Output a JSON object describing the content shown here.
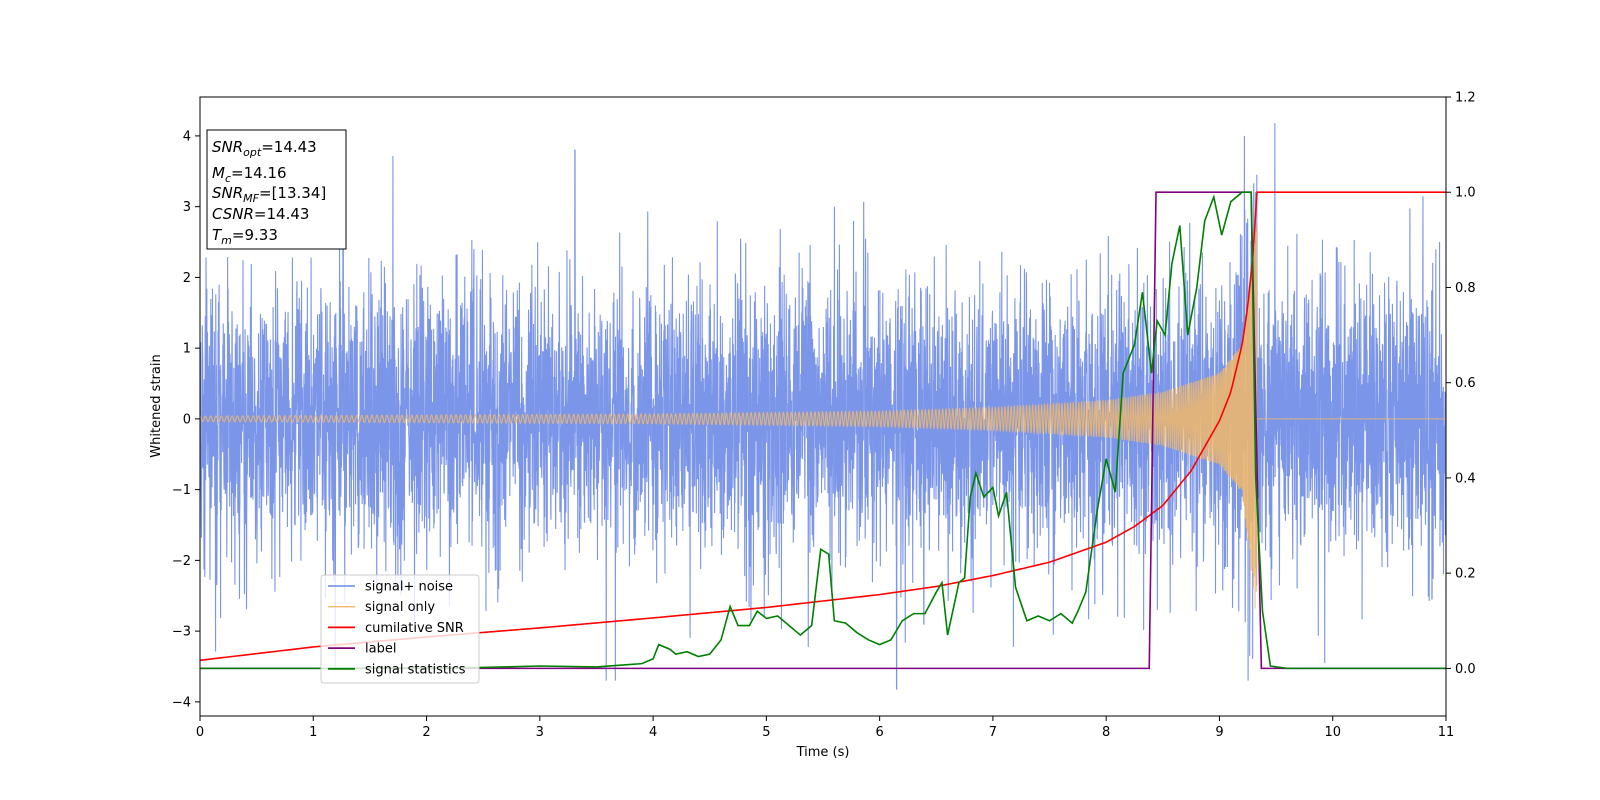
{
  "chart_data": {
    "type": "line",
    "xlabel": "Time (s)",
    "ylabel": "Whitened strain",
    "xlim": [
      0,
      11
    ],
    "ylim_left": [
      -4.2,
      4.55
    ],
    "ylim_right": [
      -0.1,
      1.2
    ],
    "x_ticks": [
      0,
      1,
      2,
      3,
      4,
      5,
      6,
      7,
      8,
      9,
      10,
      11
    ],
    "y_left_ticks": [
      -4,
      -3,
      -2,
      -1,
      0,
      1,
      2,
      3,
      4
    ],
    "y_left_tick_labels": [
      "−4",
      "−3",
      "−2",
      "−1",
      "0",
      "1",
      "2",
      "3",
      "4"
    ],
    "y_right_ticks": [
      0.0,
      0.2,
      0.4,
      0.6,
      0.8,
      1.0,
      1.2
    ],
    "y_right_tick_labels": [
      "0.0",
      "0.2",
      "0.4",
      "0.6",
      "0.8",
      "1.0",
      "1.2"
    ],
    "legend_placement": "lower-left",
    "grid": false,
    "series": [
      {
        "name": "signal+ noise",
        "axis": "left",
        "color": "#6d8ae6",
        "style": "dense noise band",
        "typical_range": [
          -2.0,
          2.3
        ],
        "notable_peaks": [
          [
            3.31,
            3.8
          ],
          [
            9.22,
            4.0
          ],
          [
            9.49,
            4.18
          ],
          [
            6.15,
            -3.82
          ],
          [
            6.39,
            -2.9
          ],
          [
            9.93,
            -3.45
          ]
        ]
      },
      {
        "name": "signal only",
        "axis": "left",
        "color": "#f2b86a",
        "style": "chirp",
        "amplitude_envelope": [
          [
            0,
            0.04
          ],
          [
            4,
            0.07
          ],
          [
            6,
            0.11
          ],
          [
            7,
            0.16
          ],
          [
            8,
            0.26
          ],
          [
            8.5,
            0.38
          ],
          [
            9.0,
            0.65
          ],
          [
            9.2,
            1.05
          ],
          [
            9.3,
            2.4
          ],
          [
            9.33,
            3.0
          ],
          [
            9.34,
            0.0
          ],
          [
            11,
            0.0
          ]
        ]
      },
      {
        "name": "cumilative SNR",
        "axis": "right",
        "color": "#ff0000",
        "points": [
          [
            0,
            0.017
          ],
          [
            1,
            0.045
          ],
          [
            2,
            0.066
          ],
          [
            3,
            0.085
          ],
          [
            4,
            0.106
          ],
          [
            5,
            0.128
          ],
          [
            6,
            0.155
          ],
          [
            6.5,
            0.172
          ],
          [
            7,
            0.195
          ],
          [
            7.5,
            0.223
          ],
          [
            8,
            0.265
          ],
          [
            8.25,
            0.298
          ],
          [
            8.5,
            0.342
          ],
          [
            8.75,
            0.415
          ],
          [
            9.0,
            0.52
          ],
          [
            9.1,
            0.58
          ],
          [
            9.2,
            0.68
          ],
          [
            9.25,
            0.76
          ],
          [
            9.3,
            0.88
          ],
          [
            9.33,
            1.0
          ],
          [
            11,
            1.0
          ]
        ]
      },
      {
        "name": "label",
        "axis": "right",
        "color": "#800080",
        "points": [
          [
            0,
            0
          ],
          [
            8.38,
            0
          ],
          [
            8.44,
            1.0
          ],
          [
            9.28,
            1.0
          ],
          [
            9.37,
            0
          ],
          [
            11,
            0
          ]
        ]
      },
      {
        "name": "signal statistics",
        "axis": "right",
        "color": "#008000",
        "points": [
          [
            0,
            0
          ],
          [
            1,
            0
          ],
          [
            2,
            0.001
          ],
          [
            2.5,
            0.002
          ],
          [
            3,
            0.005
          ],
          [
            3.5,
            0.003
          ],
          [
            3.9,
            0.01
          ],
          [
            4.0,
            0.02
          ],
          [
            4.05,
            0.05
          ],
          [
            4.15,
            0.04
          ],
          [
            4.2,
            0.03
          ],
          [
            4.3,
            0.035
          ],
          [
            4.4,
            0.025
          ],
          [
            4.5,
            0.03
          ],
          [
            4.6,
            0.06
          ],
          [
            4.68,
            0.13
          ],
          [
            4.75,
            0.09
          ],
          [
            4.85,
            0.09
          ],
          [
            4.92,
            0.12
          ],
          [
            5.0,
            0.105
          ],
          [
            5.1,
            0.11
          ],
          [
            5.2,
            0.09
          ],
          [
            5.3,
            0.07
          ],
          [
            5.4,
            0.09
          ],
          [
            5.48,
            0.25
          ],
          [
            5.55,
            0.24
          ],
          [
            5.6,
            0.1
          ],
          [
            5.7,
            0.095
          ],
          [
            5.8,
            0.075
          ],
          [
            5.9,
            0.06
          ],
          [
            6.0,
            0.05
          ],
          [
            6.1,
            0.06
          ],
          [
            6.2,
            0.1
          ],
          [
            6.3,
            0.115
          ],
          [
            6.4,
            0.115
          ],
          [
            6.5,
            0.16
          ],
          [
            6.55,
            0.18
          ],
          [
            6.6,
            0.07
          ],
          [
            6.7,
            0.18
          ],
          [
            6.75,
            0.19
          ],
          [
            6.8,
            0.36
          ],
          [
            6.85,
            0.41
          ],
          [
            6.92,
            0.36
          ],
          [
            7.0,
            0.38
          ],
          [
            7.05,
            0.32
          ],
          [
            7.12,
            0.37
          ],
          [
            7.2,
            0.17
          ],
          [
            7.3,
            0.1
          ],
          [
            7.4,
            0.11
          ],
          [
            7.5,
            0.1
          ],
          [
            7.6,
            0.115
          ],
          [
            7.7,
            0.095
          ],
          [
            7.75,
            0.12
          ],
          [
            7.82,
            0.16
          ],
          [
            7.92,
            0.33
          ],
          [
            8.0,
            0.44
          ],
          [
            8.08,
            0.37
          ],
          [
            8.15,
            0.62
          ],
          [
            8.25,
            0.68
          ],
          [
            8.32,
            0.79
          ],
          [
            8.4,
            0.62
          ],
          [
            8.45,
            0.73
          ],
          [
            8.52,
            0.7
          ],
          [
            8.58,
            0.85
          ],
          [
            8.65,
            0.93
          ],
          [
            8.72,
            0.7
          ],
          [
            8.8,
            0.8
          ],
          [
            8.87,
            0.94
          ],
          [
            8.95,
            0.99
          ],
          [
            9.02,
            0.91
          ],
          [
            9.1,
            0.98
          ],
          [
            9.2,
            1.0
          ],
          [
            9.28,
            1.0
          ],
          [
            9.32,
            0.4
          ],
          [
            9.38,
            0.12
          ],
          [
            9.45,
            0.005
          ],
          [
            9.6,
            0
          ],
          [
            11,
            0
          ]
        ]
      }
    ],
    "info_box": [
      {
        "main": "SNR",
        "sub": "opt",
        "rest": "=14.43"
      },
      {
        "main": "M",
        "sub": "c",
        "rest": "=14.16"
      },
      {
        "main": "SNR",
        "sub": "MF",
        "rest": "=[13.34]"
      },
      {
        "main": "CSNR",
        "sub": "",
        "rest": "=14.43"
      },
      {
        "main": "T",
        "sub": "m",
        "rest": "=9.33"
      }
    ]
  }
}
